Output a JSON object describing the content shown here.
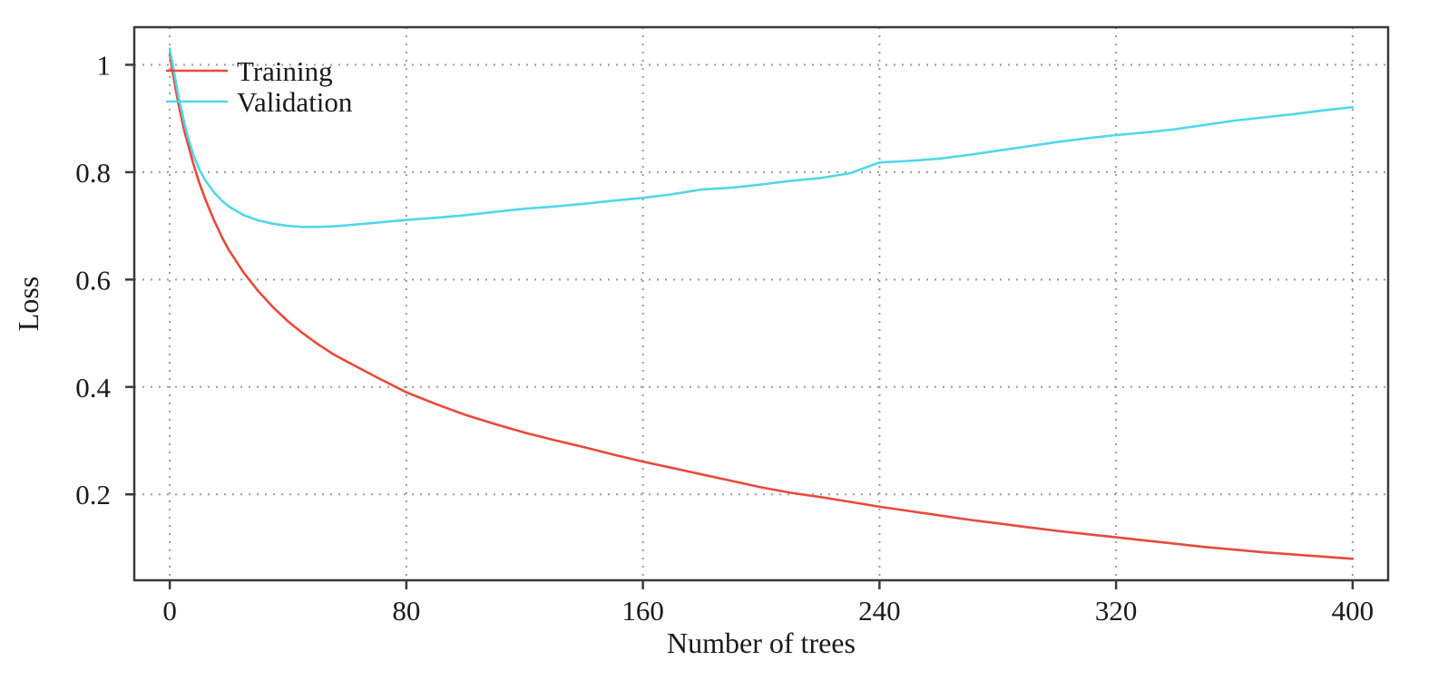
{
  "chart_data": {
    "type": "line",
    "title": "",
    "xlabel": "Number of trees",
    "ylabel": "Loss",
    "xlim": [
      -12,
      412
    ],
    "ylim": [
      0.04,
      1.07
    ],
    "x_ticks": [
      0,
      80,
      160,
      240,
      320,
      400
    ],
    "y_ticks": [
      0.2,
      0.4,
      0.6,
      0.8,
      1
    ],
    "grid": true,
    "legend_position": "top-left",
    "colors": {
      "training": "#e74a3b",
      "validation": "#4fd8e8",
      "grid": "#9a9a9a",
      "frame": "#3a3a3a",
      "text": "#1a1a1a"
    },
    "x": [
      0,
      1,
      2,
      3,
      4,
      5,
      6,
      8,
      10,
      12,
      15,
      18,
      20,
      25,
      30,
      35,
      40,
      45,
      50,
      55,
      60,
      70,
      80,
      90,
      100,
      110,
      120,
      130,
      140,
      150,
      160,
      170,
      180,
      190,
      200,
      210,
      220,
      230,
      240,
      250,
      260,
      270,
      280,
      290,
      300,
      310,
      320,
      330,
      340,
      350,
      360,
      370,
      380,
      390,
      400
    ],
    "series": [
      {
        "name": "Training",
        "color_key": "training",
        "values": [
          1.02,
          0.985,
          0.955,
          0.925,
          0.9,
          0.875,
          0.855,
          0.815,
          0.78,
          0.75,
          0.71,
          0.675,
          0.655,
          0.613,
          0.578,
          0.548,
          0.522,
          0.5,
          0.48,
          0.462,
          0.447,
          0.418,
          0.39,
          0.368,
          0.348,
          0.331,
          0.315,
          0.301,
          0.288,
          0.274,
          0.261,
          0.249,
          0.237,
          0.225,
          0.213,
          0.203,
          0.195,
          0.186,
          0.177,
          0.169,
          0.161,
          0.153,
          0.146,
          0.139,
          0.132,
          0.126,
          0.12,
          0.114,
          0.108,
          0.102,
          0.097,
          0.092,
          0.088,
          0.084,
          0.08
        ]
      },
      {
        "name": "Validation",
        "color_key": "validation",
        "values": [
          1.03,
          1.0,
          0.97,
          0.94,
          0.915,
          0.89,
          0.868,
          0.832,
          0.805,
          0.785,
          0.762,
          0.745,
          0.736,
          0.72,
          0.71,
          0.704,
          0.7,
          0.698,
          0.698,
          0.699,
          0.701,
          0.706,
          0.711,
          0.715,
          0.72,
          0.726,
          0.732,
          0.736,
          0.741,
          0.747,
          0.752,
          0.759,
          0.768,
          0.771,
          0.777,
          0.784,
          0.789,
          0.798,
          0.818,
          0.821,
          0.825,
          0.832,
          0.84,
          0.848,
          0.856,
          0.863,
          0.869,
          0.874,
          0.88,
          0.888,
          0.896,
          0.902,
          0.908,
          0.915,
          0.921
        ]
      }
    ]
  }
}
